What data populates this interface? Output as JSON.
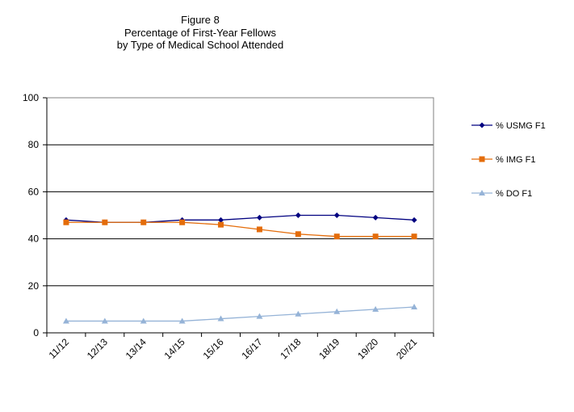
{
  "chart_data": {
    "type": "line",
    "title_lines": [
      "Figure 8",
      "Percentage  of First-Year Fellows",
      "by Type of Medical School Attended"
    ],
    "xlabel": "",
    "ylabel": "",
    "categories": [
      "11/12",
      "12/13",
      "13/14",
      "14/15",
      "15/16",
      "16/17",
      "17/18",
      "18/19",
      "19/20",
      "20/21"
    ],
    "ylim": [
      0,
      100
    ],
    "yticks": [
      0,
      20,
      40,
      60,
      80,
      100
    ],
    "grid": "horizontal",
    "legend_position": "right",
    "series": [
      {
        "name": "% USMG F1",
        "color": "#000080",
        "marker": "diamond",
        "values": [
          48,
          47,
          47,
          48,
          48,
          49,
          50,
          50,
          49,
          48
        ]
      },
      {
        "name": "% IMG F1",
        "color": "#E46C0A",
        "marker": "square",
        "values": [
          47,
          47,
          47,
          47,
          46,
          44,
          42,
          41,
          41,
          41
        ]
      },
      {
        "name": "% DO F1",
        "color": "#95B3D7",
        "marker": "triangle",
        "values": [
          5,
          5,
          5,
          5,
          6,
          7,
          8,
          9,
          10,
          11
        ]
      }
    ]
  }
}
